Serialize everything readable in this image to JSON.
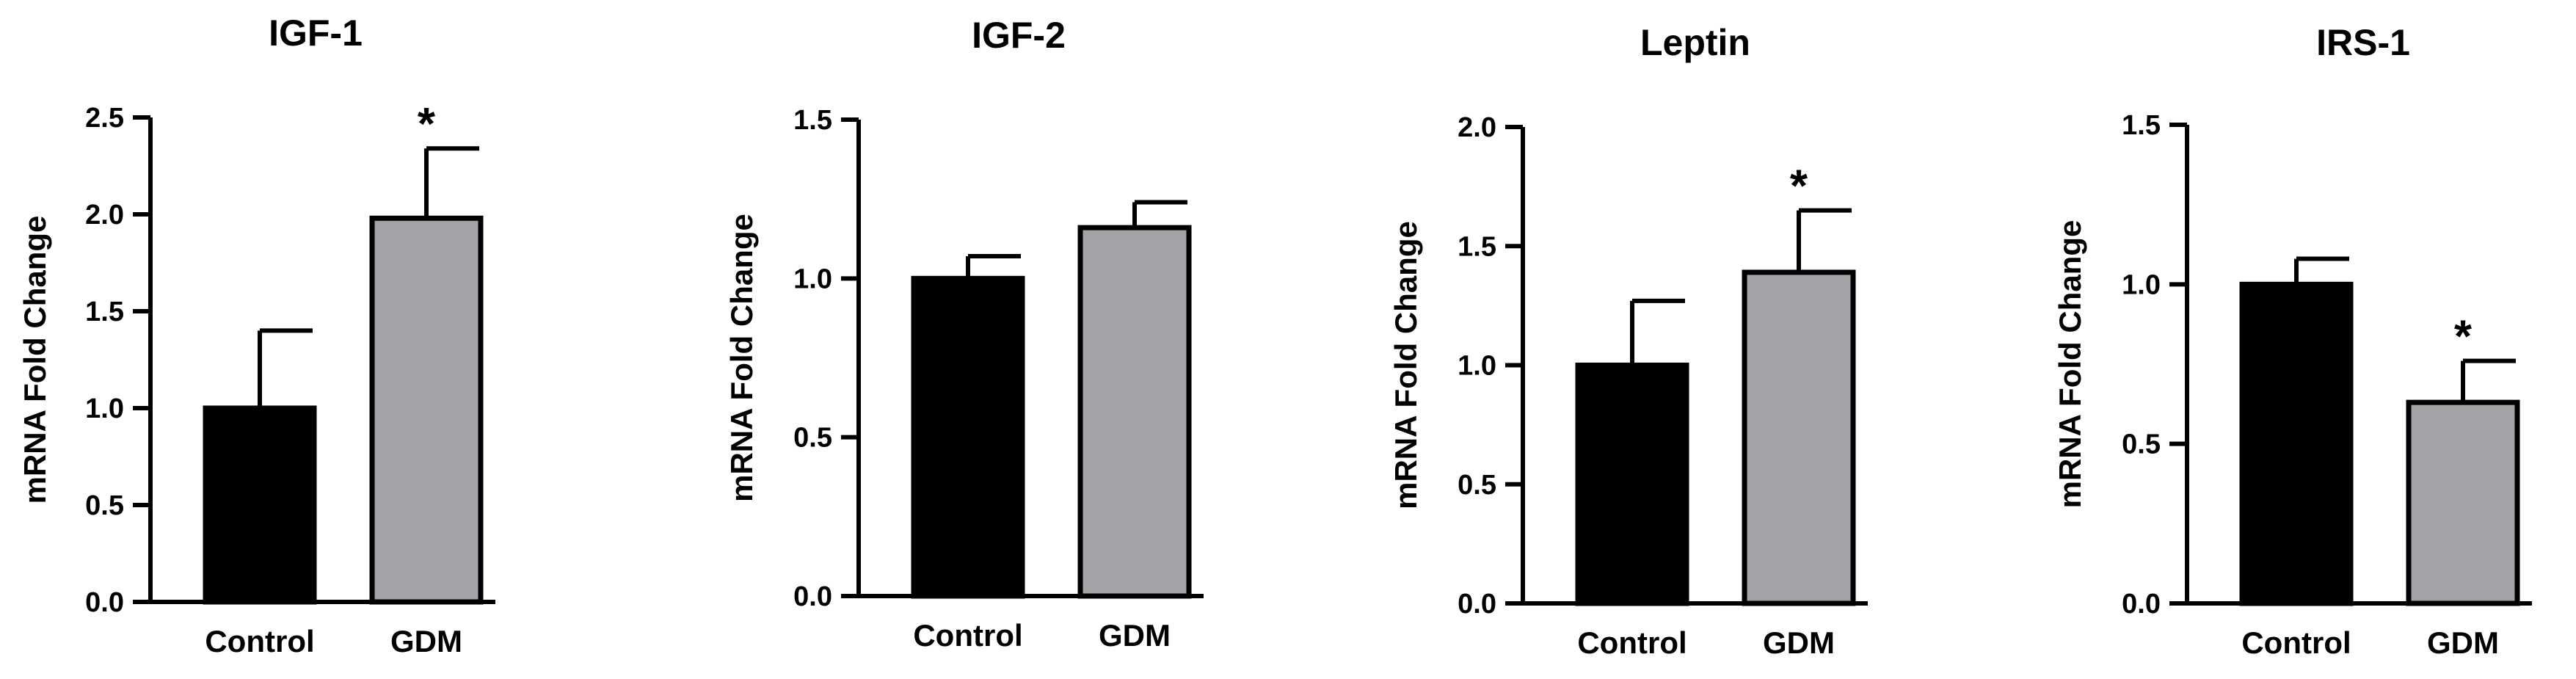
{
  "figure_name": "mRNA fold change panels",
  "chart_data": [
    {
      "type": "bar",
      "title": "IGF-1",
      "xlabel": "",
      "ylabel": "mRNA Fold Change",
      "categories": [
        "Control",
        "GDM"
      ],
      "values": [
        1.0,
        1.98
      ],
      "errors": [
        0.4,
        0.36
      ],
      "significance": [
        "",
        "*"
      ],
      "colors": [
        "#000000",
        "#A3A3A7"
      ],
      "ylim": [
        0,
        2.5
      ],
      "yticks": [
        "0.0",
        "0.5",
        "1.0",
        "1.5",
        "2.0",
        "2.5"
      ],
      "grid": false
    },
    {
      "type": "bar",
      "title": "IGF-2",
      "xlabel": "",
      "ylabel": "mRNA Fold Change",
      "categories": [
        "Control",
        "GDM"
      ],
      "values": [
        1.0,
        1.16
      ],
      "errors": [
        0.07,
        0.08
      ],
      "significance": [
        "",
        ""
      ],
      "colors": [
        "#000000",
        "#A3A3A7"
      ],
      "ylim": [
        0,
        1.5
      ],
      "yticks": [
        "0.0",
        "0.5",
        "1.0",
        "1.5"
      ],
      "grid": false
    },
    {
      "type": "bar",
      "title": "Leptin",
      "xlabel": "",
      "ylabel": "mRNA Fold Change",
      "categories": [
        "Control",
        "GDM"
      ],
      "values": [
        1.0,
        1.39
      ],
      "errors": [
        0.27,
        0.26
      ],
      "significance": [
        "",
        "*"
      ],
      "colors": [
        "#000000",
        "#A3A3A7"
      ],
      "ylim": [
        0,
        2.0
      ],
      "yticks": [
        "0.0",
        "0.5",
        "1.0",
        "1.5",
        "2.0"
      ],
      "grid": false
    },
    {
      "type": "bar",
      "title": "IRS-1",
      "xlabel": "",
      "ylabel": "mRNA Fold Change",
      "categories": [
        "Control",
        "GDM"
      ],
      "values": [
        1.0,
        0.63
      ],
      "errors": [
        0.08,
        0.13
      ],
      "significance": [
        "",
        "*"
      ],
      "colors": [
        "#000000",
        "#A3A3A7"
      ],
      "ylim": [
        0,
        1.5
      ],
      "yticks": [
        "0.0",
        "0.5",
        "1.0",
        "1.5"
      ],
      "grid": false
    }
  ]
}
